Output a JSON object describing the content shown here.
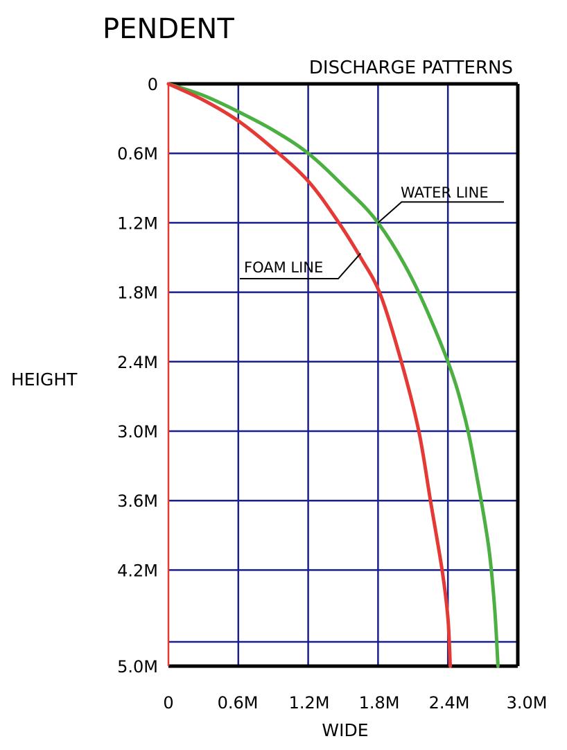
{
  "chart_data": {
    "type": "line",
    "title": "PENDENT",
    "subtitle": "DISCHARGE PATTERNS",
    "xlabel": "WIDE",
    "ylabel": "HEIGHT",
    "x_tick_labels": [
      "0",
      "0.6M",
      "1.2M",
      "1.8M",
      "2.4M",
      "3.0M"
    ],
    "y_tick_labels": [
      "0",
      "0.6M",
      "1.2M",
      "1.8M",
      "2.4M",
      "3.0M",
      "3.6M",
      "4.2M",
      "5.0M"
    ],
    "xlim": [
      0,
      3.0
    ],
    "ylim": [
      0,
      5.0
    ],
    "y_inverted": true,
    "grid": true,
    "series": [
      {
        "name": "WATER LINE",
        "color": "#4caf42",
        "x": [
          0,
          0.3,
          0.6,
          0.9,
          1.2,
          1.5,
          1.8,
          2.1,
          2.4,
          2.55,
          2.65,
          2.75,
          2.8,
          2.83
        ],
        "y": [
          0,
          0.1,
          0.24,
          0.4,
          0.6,
          0.88,
          1.2,
          1.7,
          2.4,
          2.9,
          3.4,
          4.0,
          4.5,
          5.0
        ]
      },
      {
        "name": "FOAM LINE",
        "color": "#e53935",
        "x": [
          0,
          0.3,
          0.6,
          0.9,
          1.2,
          1.45,
          1.65,
          1.82,
          2.0,
          2.15,
          2.25,
          2.35,
          2.4,
          2.42
        ],
        "y": [
          0,
          0.14,
          0.32,
          0.56,
          0.84,
          1.18,
          1.5,
          1.82,
          2.4,
          3.0,
          3.6,
          4.2,
          4.6,
          5.0
        ]
      }
    ],
    "annotations": [
      {
        "text": "WATER LINE",
        "x": 1.8,
        "y": 1.2
      },
      {
        "text": "FOAM LINE",
        "x": 1.65,
        "y": 1.5
      }
    ]
  }
}
